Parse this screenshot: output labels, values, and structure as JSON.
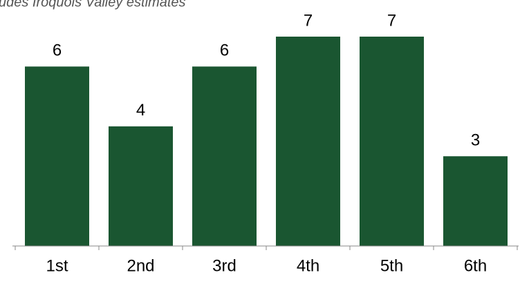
{
  "chart_data": {
    "type": "bar",
    "subtitle": "udes Iroquois Valley estimates",
    "categories": [
      "1st",
      "2nd",
      "3rd",
      "4th",
      "5th",
      "6th"
    ],
    "values": [
      6,
      4,
      6,
      7,
      7,
      3
    ],
    "color": "#1a5631"
  }
}
